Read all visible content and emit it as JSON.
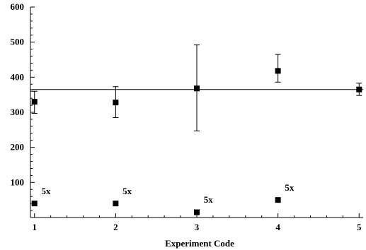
{
  "chart_data": {
    "type": "scatter",
    "title": "",
    "xlabel": "Experiment Code",
    "ylabel": "",
    "xlim": [
      0.95,
      5.05
    ],
    "ylim": [
      0,
      600
    ],
    "x_ticks": [
      1,
      2,
      3,
      4,
      5
    ],
    "x_tick_labels": [
      "1",
      "2",
      "3",
      "4",
      "5"
    ],
    "y_ticks": [
      100,
      200,
      300,
      400,
      500,
      600
    ],
    "y_tick_labels": [
      "100",
      "200",
      "300",
      "400",
      "500",
      "600"
    ],
    "grid": false,
    "legend": "none",
    "marker_color": "#000000",
    "marker_shape": "square",
    "reference_line": {
      "y": 365
    },
    "series": [
      {
        "points": [
          {
            "x": 1,
            "y": 330,
            "err_low": 297,
            "err_high": 360
          },
          {
            "x": 2,
            "y": 328,
            "err_low": 285,
            "err_high": 373
          },
          {
            "x": 3,
            "y": 368,
            "err_low": 247,
            "err_high": 492
          },
          {
            "x": 4,
            "y": 418,
            "err_low": 386,
            "err_high": 465
          },
          {
            "x": 5,
            "y": 365,
            "err_low": 348,
            "err_high": 383
          }
        ]
      },
      {
        "points": [
          {
            "x": 1,
            "y": 40
          },
          {
            "x": 2,
            "y": 40
          },
          {
            "x": 3,
            "y": 15
          },
          {
            "x": 4,
            "y": 50
          }
        ]
      }
    ],
    "annotations": [
      {
        "text": "5x",
        "x": 1.05,
        "y": 75
      },
      {
        "text": "5x",
        "x": 2.05,
        "y": 75
      },
      {
        "text": "5x",
        "x": 3.05,
        "y": 50
      },
      {
        "text": "5x",
        "x": 4.05,
        "y": 85
      }
    ]
  }
}
